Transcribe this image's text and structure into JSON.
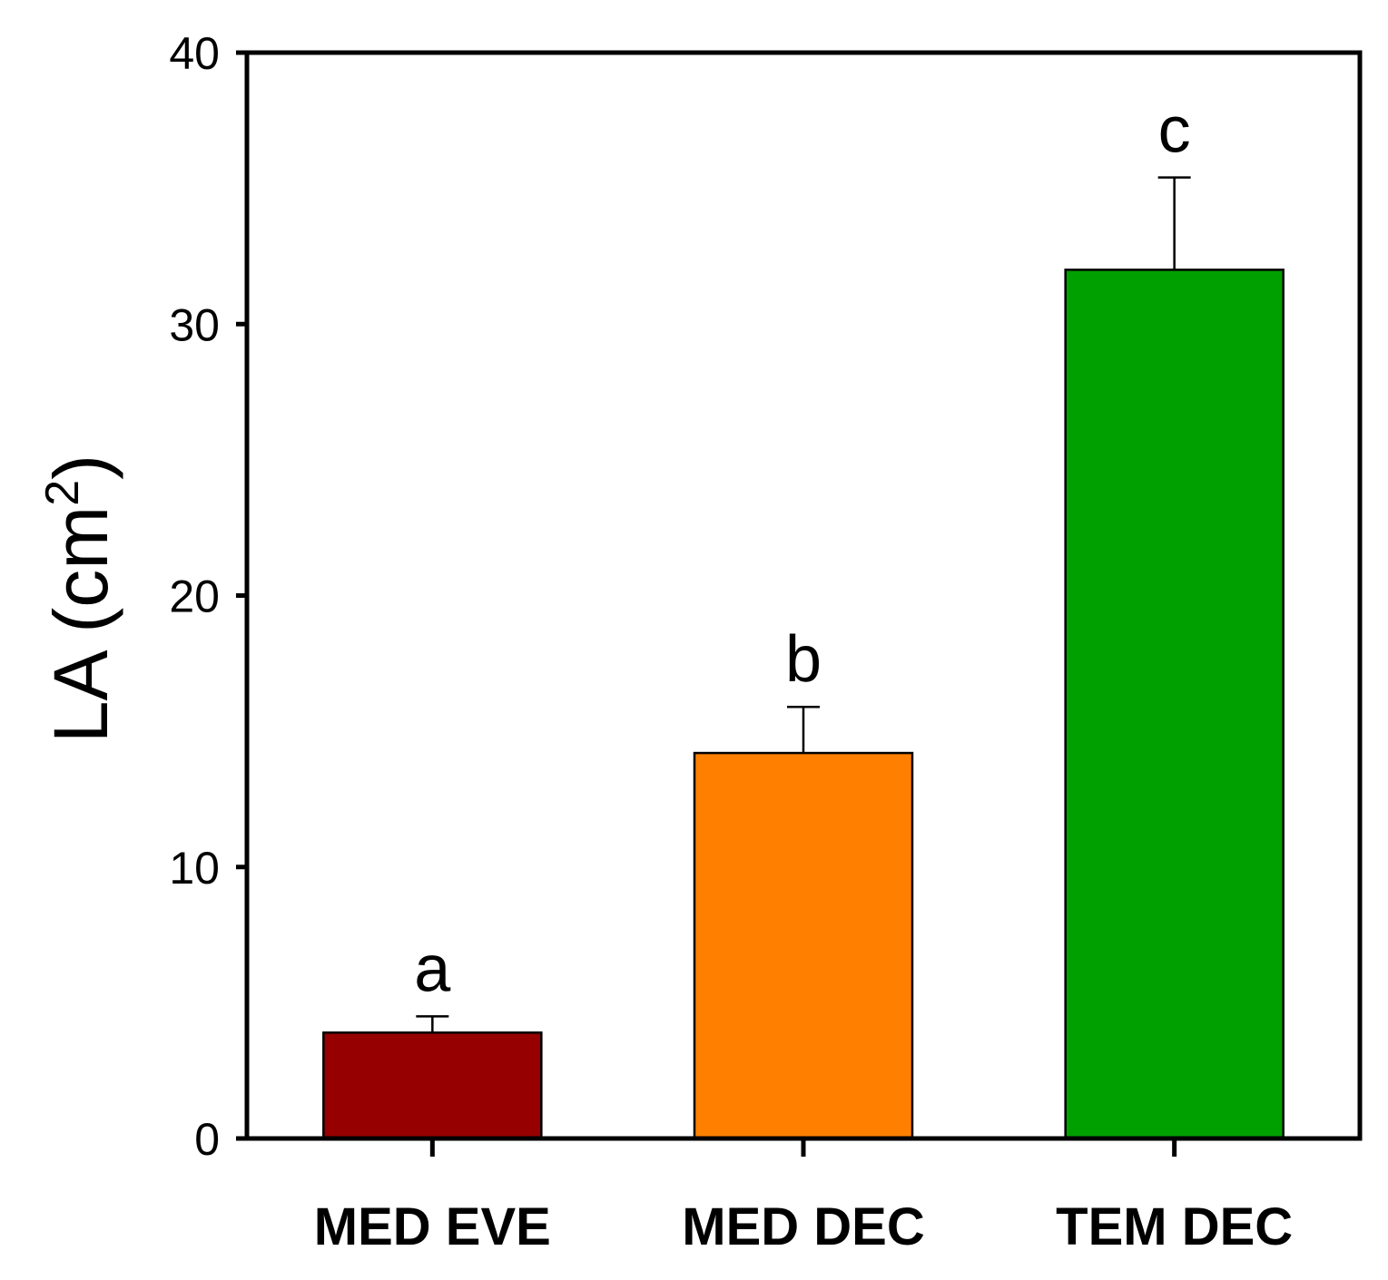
{
  "chart_data": {
    "type": "bar",
    "title": "",
    "xlabel": "",
    "ylabel": "LA (cm",
    "ylabel_superscript": "2",
    "ylabel_close": ")",
    "categories": [
      "MED EVE",
      "MED DEC",
      "TEM DEC"
    ],
    "values": [
      3.9,
      14.2,
      32.0
    ],
    "errors": [
      0.6,
      1.7,
      3.4
    ],
    "significance_letters": [
      "a",
      "b",
      "c"
    ],
    "colors": [
      "#960000",
      "#ff8000",
      "#00a000"
    ],
    "ylim": [
      0,
      40
    ],
    "yticks": [
      0,
      10,
      20,
      30,
      40
    ],
    "ytick_labels": [
      "0",
      "10",
      "20",
      "30",
      "40"
    ],
    "grid": false
  }
}
